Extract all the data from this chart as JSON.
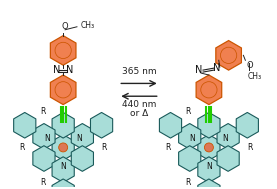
{
  "background_color": "#ffffff",
  "arrow_texts": [
    "365 nm",
    "440 nm",
    "or Δ"
  ],
  "arrow_color": "#222222",
  "orange_edge": "#CC5500",
  "orange_fill": "#F08050",
  "green_color": "#22CC00",
  "teal_fill": "#A8DDD8",
  "teal_edge": "#1A5A5A",
  "center_fill": "#DD7755",
  "center_edge": "#CC5500",
  "label_color": "#111111",
  "fig_width": 2.77,
  "fig_height": 1.89,
  "dpi": 100
}
